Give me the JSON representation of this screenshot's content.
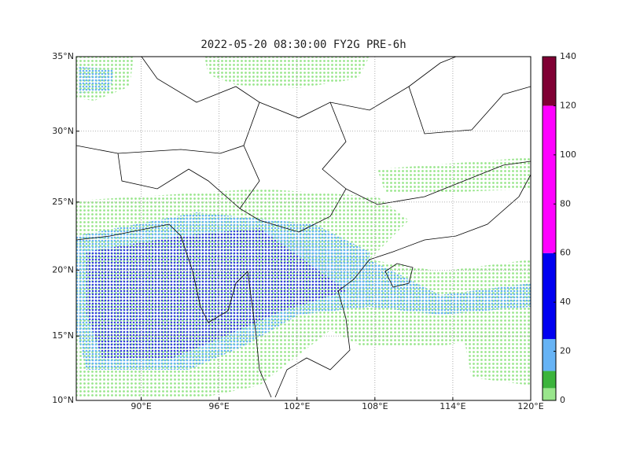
{
  "title": "2022-05-20 08:30:00 FY2G PRE-6h",
  "map": {
    "type": "map",
    "projection": "mercator",
    "xlim": [
      85,
      120
    ],
    "ylim": [
      10,
      35
    ],
    "xticks": [
      {
        "value": 90,
        "label": "90°E"
      },
      {
        "value": 96,
        "label": "96°E"
      },
      {
        "value": 102,
        "label": "102°E"
      },
      {
        "value": 108,
        "label": "108°E"
      },
      {
        "value": 114,
        "label": "114°E"
      },
      {
        "value": 120,
        "label": "120°E"
      }
    ],
    "yticks": [
      {
        "value": 10,
        "label": "10°N"
      },
      {
        "value": 15,
        "label": "15°N"
      },
      {
        "value": 20,
        "label": "20°N"
      },
      {
        "value": 25,
        "label": "25°N"
      },
      {
        "value": 30,
        "label": "30°N"
      },
      {
        "value": 35,
        "label": "35°N"
      }
    ],
    "grid": true
  },
  "colorbar": {
    "levels": [
      0,
      5,
      12,
      25,
      60,
      120,
      140
    ],
    "colors": [
      "#99e68c",
      "#3cb43c",
      "#66b3f5",
      "#0000f0",
      "#ff00ff",
      "#7f0033"
    ],
    "ticks": [
      0,
      20,
      40,
      60,
      80,
      100,
      120,
      140
    ]
  }
}
